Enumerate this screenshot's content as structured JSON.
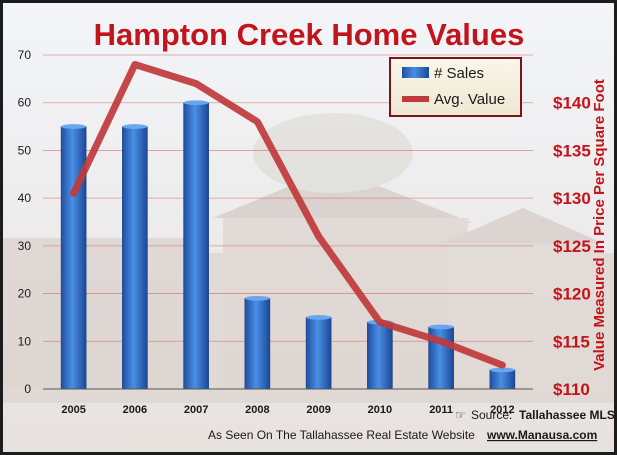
{
  "chart_data": {
    "type": "bar",
    "title": "Hampton Creek Home Values",
    "categories": [
      "2005",
      "2006",
      "2007",
      "2008",
      "2009",
      "2010",
      "2011",
      "2012"
    ],
    "series": [
      {
        "name": "# Sales",
        "type": "bar",
        "axis": "left",
        "color": "#2f6fc9",
        "values": [
          55,
          55,
          60,
          19,
          15,
          14,
          13,
          4
        ]
      },
      {
        "name": "Avg. Value",
        "type": "line",
        "axis": "right",
        "color": "#c0393b",
        "values": [
          130.5,
          144,
          142,
          138,
          126,
          117,
          115,
          112.5
        ]
      }
    ],
    "y_left": {
      "min": 0,
      "max": 70,
      "ticks": [
        "0",
        "10",
        "20",
        "30",
        "40",
        "50",
        "60",
        "70"
      ]
    },
    "y_right": {
      "min": 110,
      "max": 145,
      "ticks": [
        "$110",
        "$115",
        "$120",
        "$125",
        "$130",
        "$135",
        "$140"
      ],
      "label": "Value Measured In Price Per Square Foot"
    },
    "grid": true,
    "legend_position": "top-right"
  },
  "footer": {
    "source_prefix": "Source:",
    "source_name": "Tallahassee MLS",
    "seen_on": "As Seen On The Tallahassee Real Estate Website",
    "website": "www.Manausa.com"
  }
}
